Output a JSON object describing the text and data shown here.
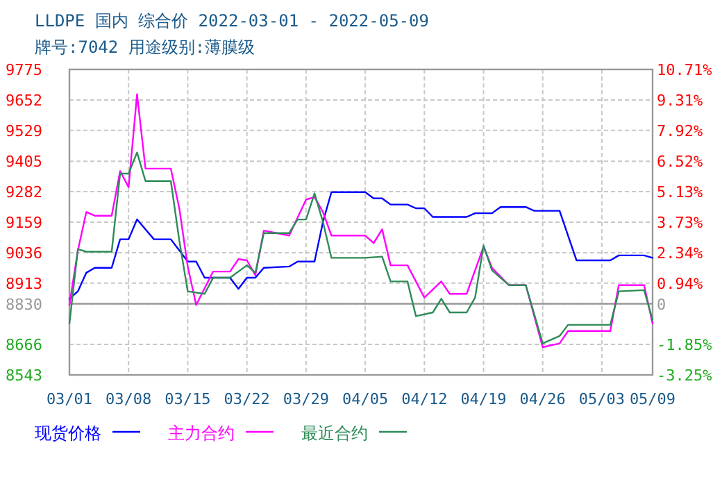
{
  "chart_data": {
    "type": "line",
    "title": "LLDPE 国内 综合价 2022-03-01 - 2022-05-09",
    "subtitle": "牌号:7042 用途级别:薄膜级",
    "xlim": [
      "2022-03-01",
      "2022-05-09"
    ],
    "xticks": [
      {
        "value": "2022-03-01",
        "label": "03/01"
      },
      {
        "value": "2022-03-08",
        "label": "03/08"
      },
      {
        "value": "2022-03-15",
        "label": "03/15"
      },
      {
        "value": "2022-03-22",
        "label": "03/22"
      },
      {
        "value": "2022-03-29",
        "label": "03/29"
      },
      {
        "value": "2022-04-05",
        "label": "04/05"
      },
      {
        "value": "2022-04-12",
        "label": "04/12"
      },
      {
        "value": "2022-04-19",
        "label": "04/19"
      },
      {
        "value": "2022-04-26",
        "label": "04/26"
      },
      {
        "value": "2022-05-03",
        "label": "05/03"
      },
      {
        "value": "2022-05-09",
        "label": "05/09"
      }
    ],
    "ylim": [
      8543,
      9775
    ],
    "yticks": [
      8543,
      8666,
      8830,
      8913,
      9036,
      9159,
      9282,
      9405,
      9529,
      9652,
      9775
    ],
    "y2lim": [
      -3.25,
      10.71
    ],
    "y2ticks": [
      {
        "value": -3.25,
        "label": "-3.25%"
      },
      {
        "value": -1.85,
        "label": "-1.85%"
      },
      {
        "value": 0,
        "label": "0"
      },
      {
        "value": 0.94,
        "label": "0.94%"
      },
      {
        "value": 2.34,
        "label": "2.34%"
      },
      {
        "value": 3.73,
        "label": "3.73%"
      },
      {
        "value": 5.13,
        "label": "5.13%"
      },
      {
        "value": 6.52,
        "label": "6.52%"
      },
      {
        "value": 7.92,
        "label": "7.92%"
      },
      {
        "value": 9.31,
        "label": "9.31%"
      },
      {
        "value": 10.71,
        "label": "10.71%"
      }
    ],
    "ref_lines": [
      {
        "axis": "y",
        "value": 8830,
        "color": "#999999"
      }
    ],
    "grid": true,
    "legend": "bottom",
    "line_style": "solid",
    "series": [
      {
        "name": "现货价格",
        "color": "#0000ff",
        "x": [
          "2022-03-01",
          "2022-03-02",
          "2022-03-03",
          "2022-03-04",
          "2022-03-06",
          "2022-03-07",
          "2022-03-08",
          "2022-03-09",
          "2022-03-11",
          "2022-03-13",
          "2022-03-15",
          "2022-03-16",
          "2022-03-17",
          "2022-03-20",
          "2022-03-21",
          "2022-03-22",
          "2022-03-23",
          "2022-03-24",
          "2022-03-27",
          "2022-03-28",
          "2022-03-30",
          "2022-03-31",
          "2022-04-01",
          "2022-04-05",
          "2022-04-06",
          "2022-04-07",
          "2022-04-08",
          "2022-04-10",
          "2022-04-11",
          "2022-04-12",
          "2022-04-13",
          "2022-04-17",
          "2022-04-18",
          "2022-04-20",
          "2022-04-21",
          "2022-04-24",
          "2022-04-25",
          "2022-04-28",
          "2022-04-29",
          "2022-04-30",
          "2022-05-04",
          "2022-05-05",
          "2022-05-08",
          "2022-05-09"
        ],
        "values": [
          8850,
          8880,
          8955,
          8975,
          8975,
          9090,
          9090,
          9170,
          9090,
          9090,
          9000,
          9000,
          8935,
          8935,
          8890,
          8935,
          8935,
          8975,
          8980,
          9000,
          9000,
          9160,
          9280,
          9280,
          9255,
          9255,
          9230,
          9230,
          9215,
          9215,
          9180,
          9180,
          9195,
          9195,
          9220,
          9220,
          9205,
          9205,
          9105,
          9005,
          9005,
          9025,
          9025,
          9015
        ]
      },
      {
        "name": "主力合约",
        "color": "#ff00ff",
        "x": [
          "2022-03-01",
          "2022-03-02",
          "2022-03-03",
          "2022-03-04",
          "2022-03-06",
          "2022-03-07",
          "2022-03-08",
          "2022-03-09",
          "2022-03-10",
          "2022-03-13",
          "2022-03-14",
          "2022-03-15",
          "2022-03-16",
          "2022-03-18",
          "2022-03-20",
          "2022-03-21",
          "2022-03-22",
          "2022-03-23",
          "2022-03-24",
          "2022-03-27",
          "2022-03-29",
          "2022-03-30",
          "2022-03-31",
          "2022-04-01",
          "2022-04-05",
          "2022-04-06",
          "2022-04-07",
          "2022-04-08",
          "2022-04-10",
          "2022-04-12",
          "2022-04-14",
          "2022-04-15",
          "2022-04-17",
          "2022-04-19",
          "2022-04-20",
          "2022-04-22",
          "2022-04-24",
          "2022-04-26",
          "2022-04-28",
          "2022-04-29",
          "2022-05-04",
          "2022-05-05",
          "2022-05-08",
          "2022-05-09"
        ],
        "values": [
          8825,
          9045,
          9200,
          9185,
          9185,
          9365,
          9300,
          9675,
          9375,
          9375,
          9215,
          8980,
          8825,
          8960,
          8960,
          9010,
          9005,
          8945,
          9125,
          9105,
          9250,
          9260,
          9200,
          9105,
          9105,
          9075,
          9130,
          8985,
          8985,
          8855,
          8920,
          8870,
          8870,
          9060,
          8975,
          8905,
          8905,
          8655,
          8670,
          8720,
          8720,
          8905,
          8905,
          8750
        ]
      },
      {
        "name": "最近合约",
        "color": "#2e8b57",
        "x": [
          "2022-03-01",
          "2022-03-02",
          "2022-03-03",
          "2022-03-06",
          "2022-03-07",
          "2022-03-08",
          "2022-03-09",
          "2022-03-10",
          "2022-03-13",
          "2022-03-14",
          "2022-03-15",
          "2022-03-17",
          "2022-03-18",
          "2022-03-20",
          "2022-03-22",
          "2022-03-23",
          "2022-03-24",
          "2022-03-27",
          "2022-03-28",
          "2022-03-29",
          "2022-03-30",
          "2022-03-31",
          "2022-04-01",
          "2022-04-05",
          "2022-04-07",
          "2022-04-08",
          "2022-04-10",
          "2022-04-11",
          "2022-04-13",
          "2022-04-14",
          "2022-04-15",
          "2022-04-17",
          "2022-04-18",
          "2022-04-19",
          "2022-04-20",
          "2022-04-22",
          "2022-04-24",
          "2022-04-26",
          "2022-04-28",
          "2022-04-29",
          "2022-05-04",
          "2022-05-05",
          "2022-05-08",
          "2022-05-09"
        ],
        "values": [
          8750,
          9050,
          9040,
          9040,
          9355,
          9355,
          9440,
          9325,
          9325,
          9085,
          8880,
          8870,
          8935,
          8935,
          8985,
          8955,
          9115,
          9115,
          9170,
          9170,
          9275,
          9160,
          9015,
          9015,
          9020,
          8920,
          8920,
          8780,
          8795,
          8850,
          8795,
          8795,
          8855,
          9065,
          8965,
          8905,
          8905,
          8670,
          8700,
          8745,
          8745,
          8880,
          8885,
          8765
        ]
      }
    ]
  }
}
